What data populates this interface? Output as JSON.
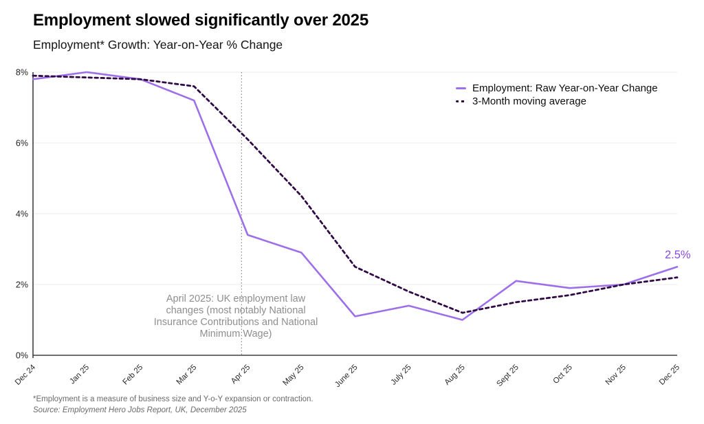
{
  "header": {
    "title": "Employment slowed significantly over 2025",
    "subtitle": "Employment* Growth: Year-on-Year % Change"
  },
  "chart_data": {
    "type": "line",
    "title": "Employment slowed significantly over 2025",
    "subtitle": "Employment* Growth: Year-on-Year % Change",
    "categories": [
      "Dec 24",
      "Jan 25",
      "Feb 25",
      "Mar 25",
      "Apr 25",
      "May 25",
      "June 25",
      "July 25",
      "Aug 25",
      "Sept 25",
      "Oct 25",
      "Nov 25",
      "Dec 25"
    ],
    "series": [
      {
        "name": "Employment: Raw Year-on-Year Change",
        "line_style": "solid",
        "color": "#9d6fe8",
        "values": [
          7.8,
          8.0,
          7.8,
          7.2,
          3.4,
          2.9,
          1.1,
          1.4,
          1.0,
          2.1,
          1.9,
          2.0,
          2.5
        ]
      },
      {
        "name": "3-Month moving average",
        "line_style": "dashed",
        "color": "#2f0a45",
        "values": [
          7.9,
          7.85,
          7.8,
          7.6,
          6.1,
          4.5,
          2.5,
          1.8,
          1.2,
          1.5,
          1.7,
          2.0,
          2.2
        ]
      }
    ],
    "xlabel": "",
    "ylabel": "",
    "ylim": [
      0,
      8
    ],
    "ytick_values": [
      0,
      2,
      4,
      6,
      8
    ],
    "ytick_labels": [
      "0%",
      "2%",
      "4%",
      "6%",
      "8%"
    ],
    "grid": true,
    "legend_position": "top-right",
    "annotation": {
      "x_category": "Apr 25",
      "x_index": 4,
      "line_style": "dotted",
      "text": "April 2025: UK employment law changes (most notably National Insurance Contributions and National Minimum Wage)"
    },
    "end_label": {
      "series": "Employment: Raw Year-on-Year Change",
      "text": "2.5%",
      "value": 2.5,
      "color": "#8a4be0"
    }
  },
  "footer": {
    "footnote": "*Employment is a measure of business size and Y-o-Y expansion or contraction.",
    "source": "Source: Employment Hero Jobs Report, UK, December 2025"
  }
}
